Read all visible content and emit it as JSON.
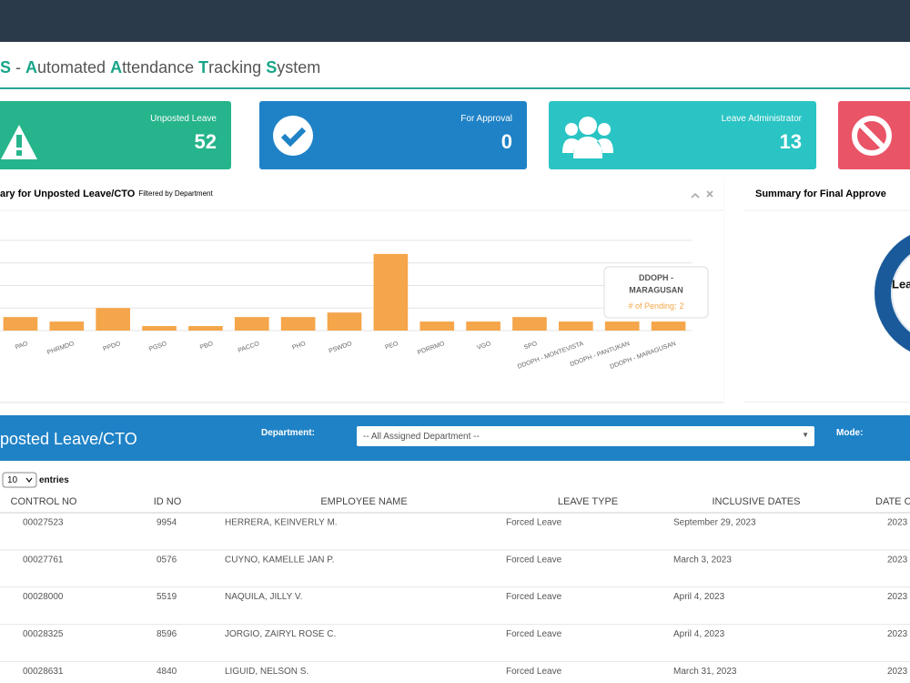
{
  "header": {
    "title_segments": [
      {
        "text": "S",
        "accent": true
      },
      {
        "text": " - ",
        "accent": false
      },
      {
        "text": "A",
        "accent": true
      },
      {
        "text": "utomated ",
        "accent": false
      },
      {
        "text": "A",
        "accent": true
      },
      {
        "text": "ttendance ",
        "accent": false
      },
      {
        "text": "T",
        "accent": true
      },
      {
        "text": "racking ",
        "accent": false
      },
      {
        "text": "S",
        "accent": true
      },
      {
        "text": "ystem",
        "accent": false
      }
    ]
  },
  "cards": [
    {
      "label": "Unposted Leave",
      "value": 52,
      "color": "#26b48c"
    },
    {
      "label": "For Approval",
      "value": 0,
      "color": "#1f82c6"
    },
    {
      "label": "Leave Administrator",
      "value": 13,
      "color": "#2ac4c4"
    },
    {
      "color": "#ea5467"
    }
  ],
  "chart_data": {
    "type": "bar",
    "title": "ary for Unposted Leave/CTO",
    "subtitle": "Filtered by Department",
    "categories": [
      "PAO",
      "PHRMDO",
      "PPDO",
      "PGSO",
      "PBO",
      "PACCO",
      "PHO",
      "PSWDO",
      "PEO",
      "PDRRMO",
      "VGO",
      "SPO",
      "DDOPH - MONTEVISTA",
      "DDOPH - PANTUKAN",
      "DDOPH - MARAGUSAN"
    ],
    "series": [
      {
        "name": "# of Pending",
        "color": "#f5a54a",
        "values": [
          3,
          2,
          5,
          1,
          1,
          3,
          3,
          4,
          17,
          2,
          2,
          3,
          2,
          2,
          2
        ]
      }
    ],
    "ylim": [
      0,
      20
    ],
    "yticks": [
      0,
      5,
      10,
      15,
      20
    ],
    "grid": true,
    "tooltip": {
      "category_index": 14,
      "separator": ":"
    }
  },
  "right_panel": {
    "title": "Summary for Final Approve",
    "donut_text": "Lea"
  },
  "filter_bar": {
    "title": "posted Leave/CTO",
    "department_label": "Department:",
    "department_value": "-- All Assigned Department --",
    "mode_label": "Mode:"
  },
  "table": {
    "page_size": "10",
    "entries_label": "entries",
    "columns": [
      "CONTROL NO",
      "ID NO",
      "EMPLOYEE NAME",
      "LEAVE TYPE",
      "INCLUSIVE DATES",
      "DATE C"
    ],
    "rows": [
      [
        "00027523",
        "9954",
        "HERRERA, KEINVERLY M.",
        "Forced Leave",
        "September 29, 2023",
        "2023"
      ],
      [
        "00027761",
        "0576",
        "CUYNO, KAMELLE JAN P.",
        "Forced Leave",
        "March 3, 2023",
        "2023"
      ],
      [
        "00028000",
        "5519",
        "NAQUILA, JILLY V.",
        "Forced Leave",
        "April 4, 2023",
        "2023"
      ],
      [
        "00028325",
        "8596",
        "JORGIO, ZAIRYL ROSE C.",
        "Forced Leave",
        "April 4, 2023",
        "2023"
      ],
      [
        "00028631",
        "4840",
        "LIGUID, NELSON S.",
        "Forced Leave",
        "March 31, 2023",
        "2023"
      ]
    ]
  }
}
